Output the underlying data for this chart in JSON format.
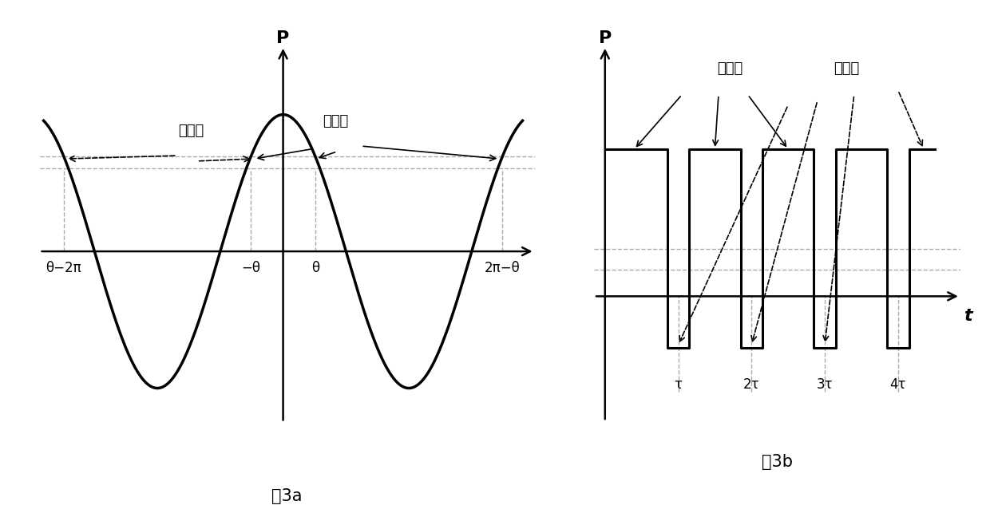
{
  "fig3a": {
    "title": "图3a",
    "ylabel": "P",
    "theta": 0.8,
    "sine_color": "#000000",
    "sine_lw": 2.5,
    "dashed_line_color": "#aaaaaa",
    "dashed_line_lw": 1.0,
    "label_nishizhen": "逆时针",
    "label_shunshizhen": "顺时针",
    "x_labels": [
      "θ−2π",
      "−θ",
      "θ",
      "2π−θ"
    ]
  },
  "fig3b": {
    "title": "图3b",
    "ylabel": "P",
    "xlabel": "t",
    "label_shunshizhen": "顺时针",
    "label_nishizhen": "逆时针",
    "x_labels": [
      "τ",
      "2τ",
      "3τ",
      "4τ"
    ],
    "pulse_high": 1.0,
    "pulse_low": -0.35,
    "ref_level1": 0.32,
    "ref_level2": 0.18
  },
  "background_color": "#ffffff",
  "text_color": "#000000",
  "fontsize_label": 14,
  "fontsize_tick": 13,
  "fontsize_caption": 15
}
